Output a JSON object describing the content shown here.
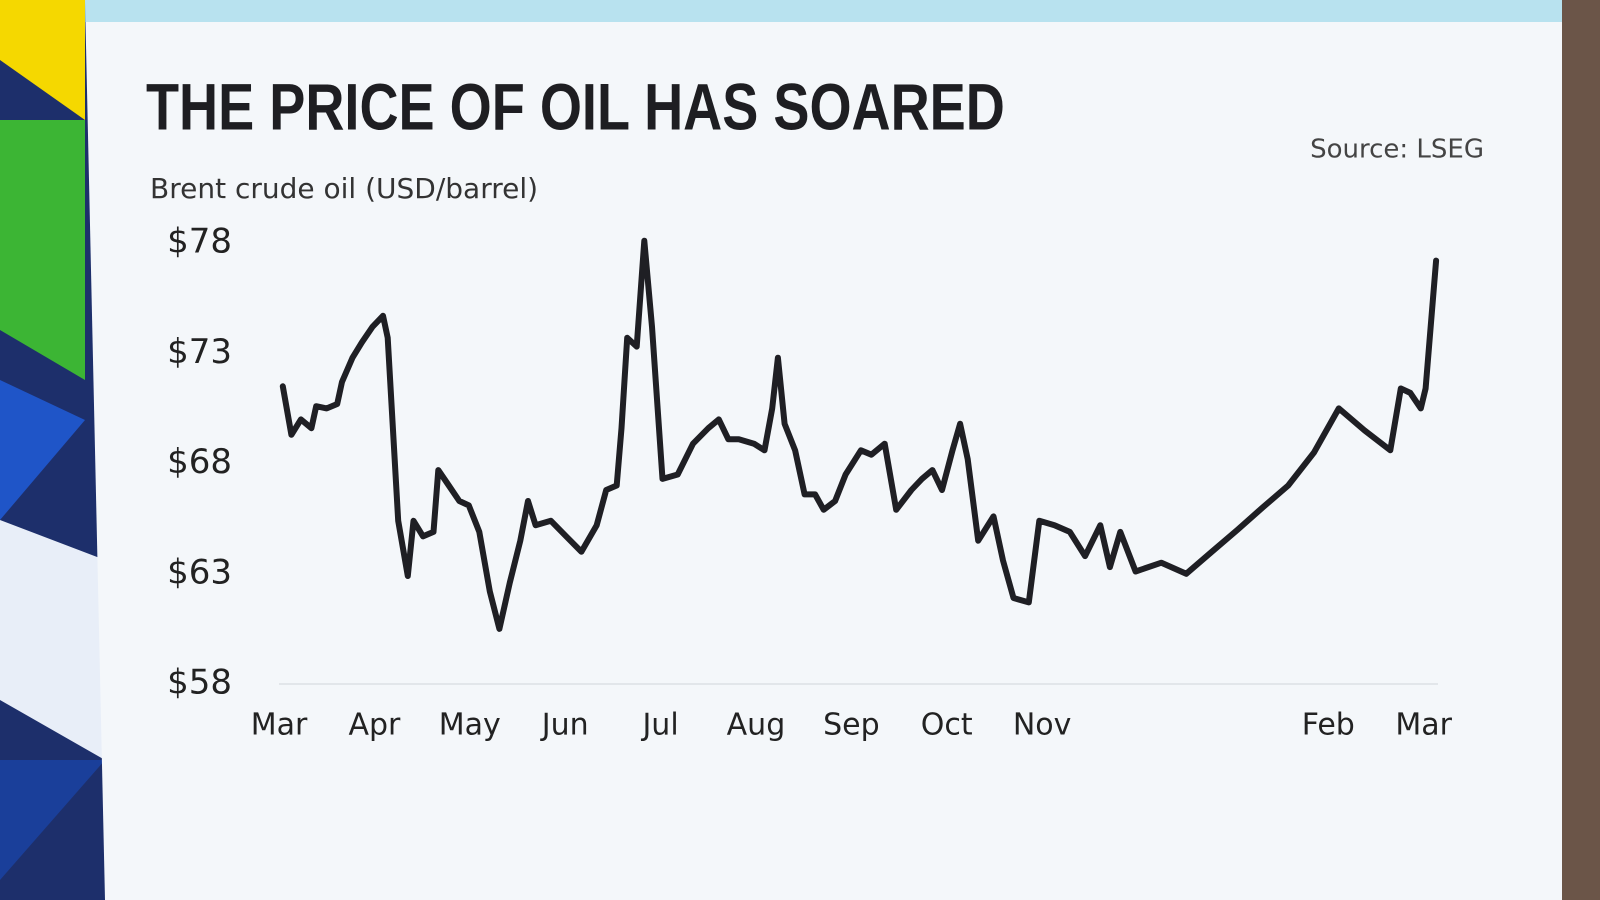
{
  "chart_data": {
    "type": "line",
    "title": "THE PRICE OF OIL HAS SOARED",
    "subtitle": "Brent crude oil (USD/barrel)",
    "source": "Source: LSEG",
    "color": "#1f1f24",
    "x": [
      0.04,
      0.13,
      0.23,
      0.34,
      0.39,
      0.5,
      0.61,
      0.66,
      0.77,
      0.87,
      0.98,
      1.09,
      1.14,
      1.25,
      1.35,
      1.41,
      1.51,
      1.62,
      1.67,
      1.78,
      1.89,
      1.99,
      2.1,
      2.21,
      2.31,
      2.42,
      2.53,
      2.61,
      2.69,
      2.85,
      3.01,
      3.17,
      3.33,
      3.43,
      3.54,
      3.59,
      3.65,
      3.75,
      3.83,
      3.91,
      4.02,
      4.18,
      4.34,
      4.5,
      4.61,
      4.71,
      4.82,
      4.98,
      5.09,
      5.17,
      5.23,
      5.3,
      5.41,
      5.51,
      5.62,
      5.71,
      5.83,
      5.94,
      6.1,
      6.21,
      6.35,
      6.47,
      6.63,
      6.74,
      6.85,
      6.95,
      7.06,
      7.14,
      7.22,
      7.33,
      7.49,
      7.59,
      7.7,
      7.86,
      7.97,
      8.13,
      8.29,
      8.45,
      8.61,
      8.71,
      8.82,
      8.98,
      9.25,
      9.51,
      9.78,
      10.05,
      10.31,
      10.58,
      10.85,
      11.11,
      11.38,
      11.65,
      11.76,
      11.86,
      11.97,
      12.02,
      12.13
    ],
    "values": [
      71.5,
      69.3,
      70.0,
      69.6,
      70.6,
      70.5,
      70.7,
      71.7,
      72.8,
      73.5,
      74.2,
      74.7,
      73.7,
      65.4,
      62.9,
      65.4,
      64.7,
      64.9,
      67.7,
      67.0,
      66.3,
      66.1,
      64.9,
      62.2,
      60.5,
      62.6,
      64.5,
      66.3,
      65.2,
      65.4,
      64.7,
      64.0,
      65.2,
      66.8,
      67.0,
      69.6,
      73.7,
      73.3,
      78.1,
      74.2,
      67.3,
      67.5,
      68.9,
      69.6,
      70.0,
      69.1,
      69.1,
      68.9,
      68.6,
      70.5,
      72.8,
      69.8,
      68.6,
      66.6,
      66.6,
      65.9,
      66.3,
      67.5,
      68.6,
      68.4,
      68.9,
      65.9,
      66.8,
      67.3,
      67.7,
      66.8,
      68.6,
      69.8,
      68.2,
      64.5,
      65.6,
      63.6,
      61.9,
      61.7,
      65.4,
      65.2,
      64.9,
      63.8,
      65.2,
      63.3,
      64.9,
      63.1,
      63.5,
      63.0,
      64.0,
      65.0,
      66.0,
      67.0,
      68.5,
      70.5,
      69.5,
      68.6,
      71.4,
      71.2,
      70.5,
      71.4,
      77.2
    ],
    "xlim": [
      0,
      12.15
    ],
    "xticks": [
      {
        "value": 0,
        "label": "Mar"
      },
      {
        "value": 1,
        "label": "Apr"
      },
      {
        "value": 2,
        "label": "May"
      },
      {
        "value": 3,
        "label": "Jun"
      },
      {
        "value": 4,
        "label": "Jul"
      },
      {
        "value": 5,
        "label": "Aug"
      },
      {
        "value": 6,
        "label": "Sep"
      },
      {
        "value": 7,
        "label": "Oct"
      },
      {
        "value": 8,
        "label": "Nov"
      },
      {
        "value": 11,
        "label": "Feb"
      },
      {
        "value": 12,
        "label": "Mar"
      }
    ],
    "ylim": [
      58,
      78
    ],
    "yticks": [
      {
        "value": 58,
        "label": "$58"
      },
      {
        "value": 63,
        "label": "$63"
      },
      {
        "value": 68,
        "label": "$68"
      },
      {
        "value": 73,
        "label": "$73"
      },
      {
        "value": 78,
        "label": "$78"
      }
    ]
  }
}
